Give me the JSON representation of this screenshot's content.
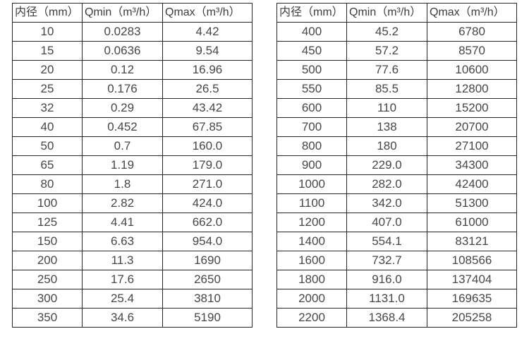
{
  "page": {
    "background": "#ffffff",
    "text_color": "#474747",
    "header_text_color": "#3d3d3d",
    "border_color": "#262626"
  },
  "tables": [
    {
      "name": "flow-spec-table-small-diameters",
      "headers": [
        "内径（mm）",
        "Qmin（m³/h）",
        "Qmax（m³/h）"
      ],
      "rows": [
        [
          "10",
          "0.0283",
          "4.42"
        ],
        [
          "15",
          "0.0636",
          "9.54"
        ],
        [
          "20",
          "0.12",
          "16.96"
        ],
        [
          "25",
          "0.176",
          "26.5"
        ],
        [
          "32",
          "0.29",
          "43.42"
        ],
        [
          "40",
          "0.452",
          "67.85"
        ],
        [
          "50",
          "0.7",
          "160.0"
        ],
        [
          "65",
          "1.19",
          "179.0"
        ],
        [
          "80",
          "1.8",
          "271.0"
        ],
        [
          "100",
          "2.82",
          "424.0"
        ],
        [
          "125",
          "4.41",
          "662.0"
        ],
        [
          "150",
          "6.63",
          "954.0"
        ],
        [
          "200",
          "11.3",
          "1690"
        ],
        [
          "250",
          "17.6",
          "2650"
        ],
        [
          "300",
          "25.4",
          "3810"
        ],
        [
          "350",
          "34.6",
          "5190"
        ]
      ]
    },
    {
      "name": "flow-spec-table-large-diameters",
      "headers": [
        "内径（mm）",
        "Qmin（m³/h）",
        "Qmax（m³/h）"
      ],
      "rows": [
        [
          "400",
          "45.2",
          "6780"
        ],
        [
          "450",
          "57.2",
          "8570"
        ],
        [
          "500",
          "77.6",
          "10600"
        ],
        [
          "550",
          "85.5",
          "12800"
        ],
        [
          "600",
          "110",
          "15200"
        ],
        [
          "700",
          "138",
          "20700"
        ],
        [
          "800",
          "180",
          "27100"
        ],
        [
          "900",
          "229.0",
          "34300"
        ],
        [
          "1000",
          "282.0",
          "42400"
        ],
        [
          "1100",
          "342.0",
          "51300"
        ],
        [
          "1200",
          "407.0",
          "61000"
        ],
        [
          "1400",
          "554.1",
          "83121"
        ],
        [
          "1600",
          "732.7",
          "108566"
        ],
        [
          "1800",
          "916.0",
          "137404"
        ],
        [
          "2000",
          "1131.0",
          "169635"
        ],
        [
          "2200",
          "1368.4",
          "205258"
        ]
      ]
    }
  ]
}
